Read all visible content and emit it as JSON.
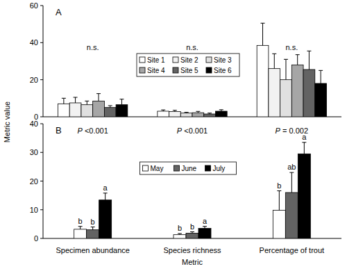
{
  "chart_data": [
    {
      "type": "bar",
      "title": "A",
      "ylabel": "Metric value",
      "categories": [
        "Specimen abundance",
        "Species richness",
        "Percentage of trout"
      ],
      "annotations": [
        "n.s.",
        "n.s.",
        "n.s."
      ],
      "series": [
        {
          "name": "Site 1",
          "color": "#ffffff",
          "values": [
            7,
            3,
            38.5
          ],
          "errors": [
            3,
            0.7,
            12
          ]
        },
        {
          "name": "Site 2",
          "color": "#f2f2f2",
          "values": [
            7.5,
            2.8,
            26
          ],
          "errors": [
            3,
            0.7,
            8
          ]
        },
        {
          "name": "Site 3",
          "color": "#e0e0e0",
          "values": [
            6.5,
            2,
            20
          ],
          "errors": [
            2,
            0.4,
            11
          ]
        },
        {
          "name": "Site 4",
          "color": "#a6a6a6",
          "values": [
            8.5,
            2.2,
            28
          ],
          "errors": [
            4,
            0.7,
            5.5
          ]
        },
        {
          "name": "Site 5",
          "color": "#636363",
          "values": [
            5,
            1.5,
            25.5
          ],
          "errors": [
            1,
            0.5,
            10
          ]
        },
        {
          "name": "Site 6",
          "color": "#000000",
          "values": [
            6.5,
            3,
            18
          ],
          "errors": [
            3,
            0.8,
            7
          ]
        }
      ],
      "ylim": [
        0,
        60
      ],
      "yticks": [
        0,
        20,
        40,
        60
      ],
      "grid": false,
      "legend": "top",
      "tick_labels": "y"
    },
    {
      "type": "bar",
      "title": "B",
      "xlabel": "Metric",
      "categories": [
        "Specimen abundance",
        "Species richness",
        "Percentage of trout"
      ],
      "annotations": [
        "P <0.001",
        "P <0.001",
        "P = 0.002"
      ],
      "series": [
        {
          "name": "May",
          "color": "#ffffff",
          "values": [
            3.2,
            1.3,
            9.8
          ],
          "errors": [
            1,
            0.4,
            6.8
          ],
          "annotations": [
            "b",
            "b",
            "b"
          ]
        },
        {
          "name": "June",
          "color": "#636363",
          "values": [
            3,
            1.8,
            16
          ],
          "errors": [
            1,
            0.5,
            7
          ],
          "annotations": [
            "b",
            "b",
            "ab"
          ]
        },
        {
          "name": "July",
          "color": "#000000",
          "values": [
            13.4,
            3.5,
            29.5
          ],
          "errors": [
            2.4,
            0.7,
            4
          ],
          "annotations": [
            "a",
            "a",
            "a"
          ]
        }
      ],
      "ylim": [
        0,
        40
      ],
      "yticks": [
        0,
        10,
        20,
        30,
        40
      ],
      "grid": false,
      "legend": "top",
      "tick_labels": true
    }
  ]
}
